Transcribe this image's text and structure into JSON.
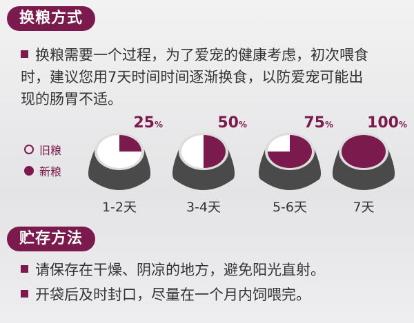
{
  "section1": {
    "title": "换粮方式",
    "text": "换粮需要一个过程，为了爱宠的健康考虑，初次喂食时，建议您用7天时间时间逐渐换食，以防爱宠可能出现的肠胃不适。",
    "lines": [
      "换粮需要一个过程，为了爱宠的健康考虑，初次喂食",
      "时，建议您用7天时间时间逐渐换食，以防爱宠可能出",
      "现的肠胃不适。"
    ]
  },
  "legend": {
    "old": "旧粮",
    "new": "新粮"
  },
  "schedule": [
    {
      "percent": 25,
      "percent_label": "25",
      "unit": "%",
      "days": "1-2天"
    },
    {
      "percent": 50,
      "percent_label": "50",
      "unit": "%",
      "days": "3-4天"
    },
    {
      "percent": 75,
      "percent_label": "75",
      "unit": "%",
      "days": "5-6天"
    },
    {
      "percent": 100,
      "percent_label": "100",
      "unit": "%",
      "days": "7天"
    }
  ],
  "section2": {
    "title": "贮存方法",
    "items": [
      "请保存在干燥、阴凉的地方，避免阳光直射。",
      "开袋后及时封口，尽量在一个月内饲喂完。"
    ]
  },
  "colors": {
    "accent": "#7b1a4d",
    "bowl": "#4a4a4a"
  }
}
